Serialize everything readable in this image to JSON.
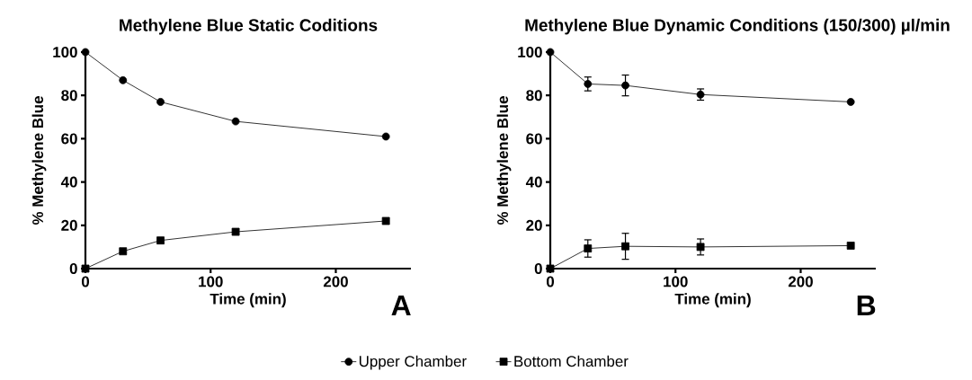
{
  "chart_data": [
    {
      "type": "line",
      "title": "Methylene Blue Static Coditions",
      "xlabel": "Time (min)",
      "ylabel": "% Methylene Blue",
      "x": [
        0,
        30,
        60,
        120,
        240
      ],
      "xlim": [
        0,
        260
      ],
      "ylim": [
        0,
        100
      ],
      "xticks": [
        0,
        100,
        200
      ],
      "yticks": [
        0,
        20,
        40,
        60,
        80,
        100
      ],
      "grid": false,
      "legend": "bottom",
      "line_style": "solid",
      "annotations": [
        "A"
      ],
      "series": [
        {
          "name": "Upper Chamber",
          "color": "#000000",
          "marker": "circle",
          "values": [
            100,
            87,
            77,
            68,
            61
          ]
        },
        {
          "name": "Bottom Chamber",
          "color": "#000000",
          "marker": "square",
          "values": [
            0,
            8,
            13,
            17,
            22
          ]
        }
      ]
    },
    {
      "type": "line",
      "title": "Methylene Blue Dynamic Conditions (150/300) µl/min",
      "xlabel": "Time (min)",
      "ylabel": "% Methylene Blue",
      "x": [
        0,
        30,
        60,
        120,
        240
      ],
      "xlim": [
        0,
        260
      ],
      "ylim": [
        0,
        100
      ],
      "xticks": [
        0,
        100,
        200
      ],
      "yticks": [
        0,
        20,
        40,
        60,
        80,
        100
      ],
      "grid": false,
      "legend": false,
      "line_style": "solid",
      "annotations": [
        "B"
      ],
      "series": [
        {
          "color": "#000000",
          "marker": "circle",
          "values": [
            100,
            85.3,
            84.6,
            80.4,
            77
          ],
          "errors": [
            null,
            3.2,
            4.8,
            2.6,
            null
          ]
        },
        {
          "color": "#000000",
          "marker": "square",
          "values": [
            0,
            9.3,
            10.3,
            10,
            10.6
          ],
          "errors": [
            null,
            4,
            6,
            3.7,
            null
          ]
        }
      ]
    }
  ]
}
